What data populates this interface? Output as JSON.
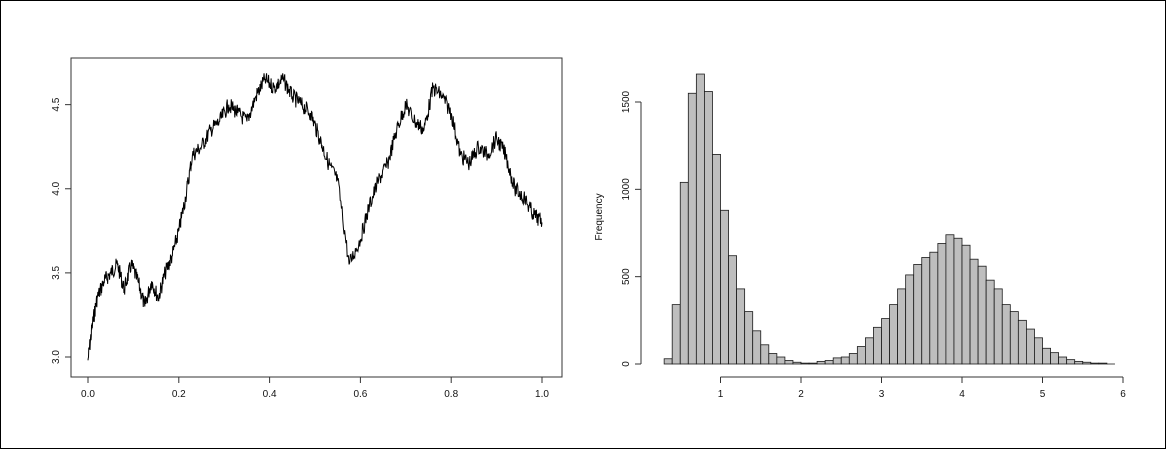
{
  "colors": {
    "line": "#000000",
    "bar_fill": "#bebebe",
    "bar_stroke": "#1a1a1a",
    "axis": "#333333"
  },
  "chart_data": [
    {
      "type": "line",
      "title": "",
      "xlabel": "",
      "ylabel": "",
      "xlim": [
        0.0,
        1.0
      ],
      "ylim": [
        3.0,
        4.7
      ],
      "xticks": [
        "0.0",
        "0.2",
        "0.4",
        "0.6",
        "0.8",
        "1.0"
      ],
      "yticks": [
        "3.0",
        "3.5",
        "4.0",
        "4.5"
      ],
      "grid": false,
      "x": [
        0.0,
        0.01,
        0.02,
        0.035,
        0.05,
        0.065,
        0.08,
        0.095,
        0.11,
        0.125,
        0.14,
        0.155,
        0.17,
        0.185,
        0.2,
        0.215,
        0.23,
        0.25,
        0.27,
        0.29,
        0.31,
        0.33,
        0.35,
        0.37,
        0.39,
        0.41,
        0.43,
        0.45,
        0.47,
        0.49,
        0.51,
        0.53,
        0.55,
        0.575,
        0.6,
        0.62,
        0.64,
        0.66,
        0.68,
        0.7,
        0.72,
        0.74,
        0.76,
        0.78,
        0.8,
        0.82,
        0.84,
        0.86,
        0.88,
        0.9,
        0.92,
        0.94,
        0.96,
        0.98,
        1.0
      ],
      "y": [
        2.98,
        3.2,
        3.35,
        3.45,
        3.5,
        3.55,
        3.4,
        3.55,
        3.45,
        3.3,
        3.45,
        3.35,
        3.5,
        3.6,
        3.75,
        3.95,
        4.2,
        4.25,
        4.35,
        4.4,
        4.5,
        4.45,
        4.4,
        4.55,
        4.65,
        4.6,
        4.65,
        4.55,
        4.5,
        4.45,
        4.3,
        4.15,
        4.05,
        3.55,
        3.7,
        3.9,
        4.05,
        4.15,
        4.35,
        4.5,
        4.4,
        4.35,
        4.6,
        4.55,
        4.45,
        4.2,
        4.15,
        4.25,
        4.2,
        4.3,
        4.2,
        4.0,
        3.95,
        3.85,
        3.8
      ]
    },
    {
      "type": "bar",
      "title": "",
      "xlabel": "",
      "ylabel": "Frequency",
      "xlim": [
        0,
        6
      ],
      "ylim": [
        0,
        1700
      ],
      "xticks": [
        "1",
        "2",
        "3",
        "4",
        "5",
        "6"
      ],
      "yticks": [
        "0",
        "500",
        "1000",
        "1500"
      ],
      "bin_width": 0.1,
      "bin_start": [
        0.3,
        0.4,
        0.5,
        0.6,
        0.7,
        0.8,
        0.9,
        1.0,
        1.1,
        1.2,
        1.3,
        1.4,
        1.5,
        1.6,
        1.7,
        1.8,
        1.9,
        2.0,
        2.1,
        2.2,
        2.3,
        2.4,
        2.5,
        2.6,
        2.7,
        2.8,
        2.9,
        3.0,
        3.1,
        3.2,
        3.3,
        3.4,
        3.5,
        3.6,
        3.7,
        3.8,
        3.9,
        4.0,
        4.1,
        4.2,
        4.3,
        4.4,
        4.5,
        4.6,
        4.7,
        4.8,
        4.9,
        5.0,
        5.1,
        5.2,
        5.3,
        5.4,
        5.5,
        5.6,
        5.7,
        5.8
      ],
      "values": [
        30,
        340,
        1040,
        1550,
        1660,
        1560,
        1200,
        880,
        620,
        430,
        300,
        190,
        110,
        60,
        40,
        20,
        10,
        5,
        5,
        15,
        20,
        35,
        40,
        60,
        100,
        150,
        210,
        260,
        340,
        430,
        510,
        570,
        610,
        640,
        690,
        740,
        720,
        680,
        600,
        560,
        480,
        430,
        340,
        300,
        250,
        200,
        150,
        90,
        65,
        40,
        25,
        15,
        10,
        5,
        5,
        0
      ]
    }
  ]
}
